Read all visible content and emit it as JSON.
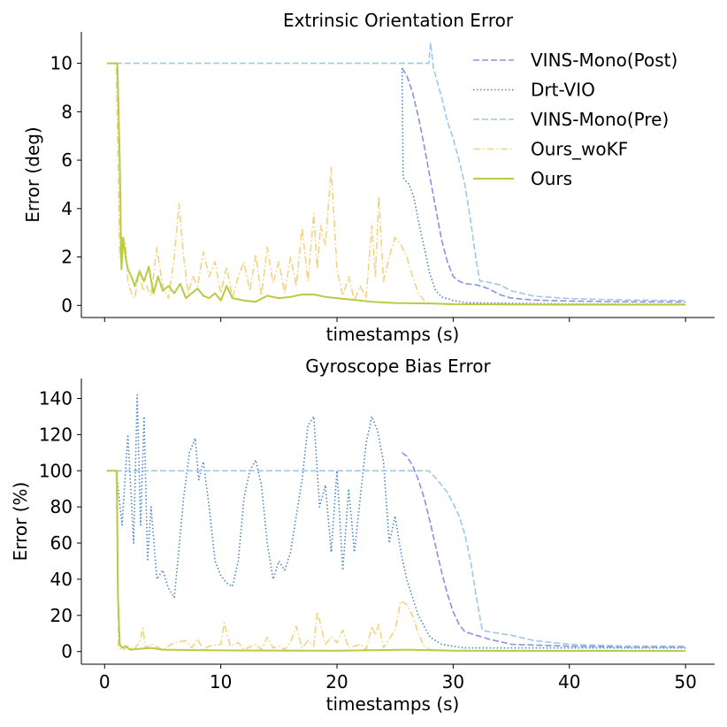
{
  "chart_data": [
    {
      "type": "line",
      "title": "Extrinsic Orientation Error",
      "xlabel": "timestamps (s)",
      "ylabel": "Error (deg)",
      "xlim": [
        -2,
        52.5
      ],
      "ylim": [
        -0.5,
        11.3
      ],
      "xticks": [
        0,
        10,
        20,
        30,
        40,
        50
      ],
      "xtick_labels_visible": false,
      "yticks": [
        0,
        2,
        4,
        6,
        8,
        10
      ],
      "ytick_labels": [
        "0",
        "2",
        "4",
        "6",
        "8",
        "10"
      ],
      "legend_position": "top-right",
      "series": [
        {
          "name": "VINS-Mono(Post)",
          "color": "#8e8fe0",
          "dash": "dashed",
          "x": [
            25.6,
            26.0,
            26.5,
            27.0,
            27.5,
            28.0,
            28.5,
            29.0,
            29.5,
            30.0,
            30.5,
            31.0,
            32.0,
            33.0,
            34.0,
            35.0,
            37.0,
            40.0,
            45.0,
            50.0
          ],
          "y": [
            9.8,
            9.5,
            8.8,
            7.8,
            6.6,
            5.3,
            4.0,
            2.7,
            1.8,
            1.2,
            1.0,
            0.9,
            0.85,
            0.7,
            0.45,
            0.3,
            0.22,
            0.18,
            0.15,
            0.14
          ]
        },
        {
          "name": "Drt-VIO",
          "color": "#4a86c6",
          "dash": "dotted",
          "x": [
            25.6,
            25.7,
            25.8,
            26.2,
            26.6,
            27.0,
            27.5,
            28.0,
            28.5,
            29.0,
            30.0,
            31.0,
            33.0,
            36.0,
            40.0,
            45.0,
            50.0
          ],
          "y": [
            9.8,
            5.3,
            5.2,
            5.0,
            4.5,
            3.5,
            2.4,
            1.3,
            0.6,
            0.35,
            0.2,
            0.12,
            0.1,
            0.08,
            0.06,
            0.05,
            0.05
          ]
        },
        {
          "name": "VINS-Mono(Pre)",
          "color": "#9ec8ea",
          "dash": "dashed",
          "x": [
            0.2,
            27.9,
            28.05,
            28.3,
            29.0,
            29.5,
            30.0,
            30.5,
            31.0,
            31.5,
            32.0,
            32.3,
            32.6,
            34.0,
            35.0,
            37.0,
            40.0,
            45.0,
            50.0
          ],
          "y": [
            10.0,
            10.0,
            10.85,
            9.8,
            8.6,
            7.6,
            6.9,
            6.0,
            5.0,
            3.5,
            1.8,
            1.0,
            1.0,
            0.85,
            0.6,
            0.38,
            0.28,
            0.22,
            0.2
          ]
        },
        {
          "name": "Ours_woKF",
          "color": "#f2d37e",
          "dash": "dashdot",
          "x": [
            0.2,
            1.0,
            1.3,
            1.5,
            1.8,
            2.0,
            2.3,
            2.6,
            3.0,
            3.3,
            3.6,
            4.0,
            4.5,
            5.0,
            5.5,
            6.0,
            6.4,
            6.8,
            7.2,
            7.6,
            8.0,
            8.5,
            9.0,
            9.5,
            10.0,
            10.5,
            11.0,
            11.5,
            12.0,
            12.5,
            13.0,
            13.5,
            14.0,
            14.5,
            15.0,
            15.5,
            16.0,
            16.5,
            17.0,
            17.5,
            18.0,
            18.3,
            18.6,
            19.0,
            19.5,
            20.0,
            20.5,
            21.0,
            21.5,
            22.0,
            22.5,
            23.0,
            23.3,
            23.6,
            24.0,
            24.5,
            25.0,
            25.5,
            26.0,
            26.5,
            27.0,
            27.5,
            28.0,
            29.0,
            30.0,
            35.0,
            40.0,
            45.0,
            50.0
          ],
          "y": [
            10.0,
            10.0,
            2.0,
            2.8,
            2.6,
            1.0,
            0.5,
            0.3,
            1.5,
            0.6,
            0.8,
            0.4,
            2.4,
            0.8,
            0.3,
            2.0,
            4.2,
            2.0,
            0.5,
            1.2,
            0.8,
            2.2,
            1.2,
            1.8,
            0.5,
            1.6,
            0.3,
            1.2,
            1.8,
            0.6,
            2.1,
            0.4,
            2.4,
            0.9,
            1.8,
            0.5,
            2.0,
            0.8,
            3.2,
            1.0,
            3.8,
            1.5,
            3.3,
            2.5,
            5.7,
            1.5,
            0.4,
            1.2,
            0.2,
            0.8,
            0.3,
            3.3,
            1.2,
            4.5,
            1.0,
            2.0,
            2.8,
            2.5,
            2.0,
            1.2,
            0.5,
            0.2,
            0.08,
            0.05,
            0.04,
            0.04,
            0.03,
            0.03,
            0.03
          ]
        },
        {
          "name": "Ours",
          "color": "#b5cc44",
          "dash": "solid",
          "x": [
            0.2,
            1.1,
            1.3,
            1.45,
            1.6,
            1.8,
            2.0,
            2.3,
            2.6,
            3.0,
            3.4,
            3.8,
            4.2,
            4.6,
            5.0,
            5.5,
            6.0,
            6.5,
            7.0,
            7.5,
            8.0,
            8.5,
            9.0,
            9.5,
            10.0,
            10.5,
            11.0,
            12.0,
            13.0,
            14.0,
            15.0,
            16.0,
            17.0,
            18.0,
            19.0,
            20.0,
            21.0,
            22.0,
            23.0,
            25.0,
            28.0,
            30.0,
            35.0,
            40.0,
            45.0,
            50.0
          ],
          "y": [
            10.0,
            10.0,
            6.0,
            1.5,
            2.8,
            2.0,
            1.5,
            1.2,
            0.8,
            1.4,
            1.0,
            1.6,
            0.5,
            1.2,
            0.6,
            0.8,
            0.5,
            0.9,
            0.3,
            0.5,
            0.7,
            0.4,
            0.3,
            0.5,
            0.2,
            0.8,
            0.3,
            0.2,
            0.15,
            0.4,
            0.3,
            0.35,
            0.45,
            0.45,
            0.35,
            0.3,
            0.25,
            0.2,
            0.15,
            0.1,
            0.08,
            0.05,
            0.04,
            0.03,
            0.03,
            0.03
          ]
        }
      ]
    },
    {
      "type": "line",
      "title": "Gyroscope Bias Error",
      "xlabel": "timestamps (s)",
      "ylabel": "Error (%)",
      "xlim": [
        -2,
        52.5
      ],
      "ylim": [
        -7,
        151
      ],
      "xticks": [
        0,
        10,
        20,
        30,
        40,
        50
      ],
      "xtick_labels": [
        "0",
        "10",
        "20",
        "30",
        "40",
        "50"
      ],
      "yticks": [
        0,
        20,
        40,
        60,
        80,
        100,
        120,
        140
      ],
      "ytick_labels": [
        "0",
        "20",
        "40",
        "60",
        "80",
        "100",
        "120",
        "140"
      ],
      "series": [
        {
          "name": "VINS-Mono(Post)",
          "color": "#8e8fe0",
          "dash": "dashed",
          "x": [
            25.6,
            26.0,
            26.5,
            27.0,
            27.5,
            28.0,
            28.5,
            29.0,
            29.5,
            30.0,
            30.5,
            31.0,
            32.0,
            33.0,
            35.0,
            40.0,
            45.0,
            50.0
          ],
          "y": [
            110,
            108,
            103,
            95,
            85,
            72,
            58,
            44,
            32,
            22,
            15,
            11,
            9,
            7,
            4,
            3,
            2.5,
            2.5
          ]
        },
        {
          "name": "Drt-VIO",
          "color": "#4a86c6",
          "dash": "dotted",
          "x": [
            0.2,
            1.0,
            1.5,
            2.0,
            2.5,
            2.8,
            3.1,
            3.4,
            3.7,
            4.0,
            4.5,
            5.0,
            5.5,
            6.0,
            6.3,
            6.8,
            7.3,
            7.8,
            8.1,
            8.5,
            9.0,
            9.5,
            10.0,
            10.5,
            11.0,
            11.5,
            12.0,
            12.5,
            13.0,
            13.5,
            14.0,
            14.5,
            15.0,
            15.5,
            16.0,
            16.5,
            17.0,
            17.5,
            18.0,
            18.5,
            19.0,
            19.5,
            20.0,
            20.5,
            21.0,
            21.5,
            22.0,
            22.5,
            23.0,
            23.5,
            24.0,
            24.5,
            25.0,
            25.5,
            26.0,
            27.0,
            28.0,
            29.0,
            30.0,
            31.0,
            32.0,
            34.0,
            37.0,
            40.0,
            45.0,
            50.0
          ],
          "y": [
            100,
            100,
            70,
            120,
            60,
            142,
            70,
            130,
            50,
            80,
            40,
            45,
            35,
            30,
            50,
            85,
            110,
            118,
            95,
            105,
            80,
            50,
            42,
            38,
            36,
            50,
            85,
            100,
            106,
            92,
            60,
            40,
            50,
            45,
            55,
            75,
            95,
            125,
            130,
            80,
            92,
            55,
            100,
            45,
            90,
            55,
            85,
            115,
            130,
            122,
            105,
            60,
            75,
            55,
            40,
            20,
            8,
            4,
            3,
            2,
            2,
            2,
            2,
            2,
            2,
            2
          ]
        },
        {
          "name": "VINS-Mono(Pre)",
          "color": "#9ec8ea",
          "dash": "dashed",
          "x": [
            0.2,
            27.9,
            28.5,
            29.0,
            29.5,
            30.0,
            30.5,
            31.0,
            31.5,
            32.0,
            32.5,
            33.0,
            34.0,
            35.0,
            37.0,
            40.0,
            45.0,
            50.0
          ],
          "y": [
            100,
            100,
            96,
            92,
            88,
            82,
            75,
            65,
            50,
            30,
            12,
            11,
            10,
            9,
            6,
            4,
            3,
            3
          ]
        },
        {
          "name": "Ours_woKF",
          "color": "#f2d37e",
          "dash": "dashdot",
          "x": [
            0.2,
            1.0,
            1.2,
            1.5,
            2.0,
            2.5,
            3.0,
            3.3,
            3.5,
            4.0,
            5.0,
            6.0,
            7.0,
            7.5,
            8.0,
            8.5,
            9.0,
            10.0,
            10.3,
            10.8,
            11.5,
            12.0,
            13.0,
            13.5,
            14.0,
            14.5,
            15.0,
            15.5,
            16.0,
            16.5,
            17.0,
            17.5,
            18.0,
            18.3,
            18.7,
            19.0,
            19.5,
            20.0,
            20.5,
            21.0,
            22.0,
            22.5,
            23.0,
            23.3,
            23.6,
            24.0,
            25.0,
            25.5,
            26.0,
            26.5,
            27.0,
            27.5,
            28.0,
            30.0,
            35.0,
            40.0,
            50.0
          ],
          "y": [
            100,
            100,
            2,
            0.5,
            3,
            1,
            5,
            13,
            2,
            4,
            1,
            5,
            6,
            2,
            7,
            1,
            3,
            4,
            16,
            3,
            5,
            1,
            4,
            1,
            8,
            2,
            3,
            1,
            5,
            14,
            2,
            6,
            3,
            22,
            12,
            4,
            8,
            5,
            12,
            2,
            4,
            1,
            14,
            9,
            15,
            2,
            12,
            28,
            26,
            20,
            10,
            3,
            1,
            0.5,
            0.3,
            0.3,
            0.3
          ]
        },
        {
          "name": "Ours",
          "color": "#b5cc44",
          "dash": "solid",
          "x": [
            0.2,
            1.05,
            1.15,
            1.3,
            1.5,
            1.8,
            2.2,
            3.0,
            4.0,
            5.0,
            8.0,
            12.0,
            20.0,
            26.0,
            30.0,
            40.0,
            50.0
          ],
          "y": [
            100,
            100,
            30,
            4,
            2,
            3,
            1,
            1.5,
            2,
            1,
            0.8,
            0.6,
            0.5,
            1,
            0.5,
            0.4,
            0.4
          ]
        }
      ]
    }
  ]
}
